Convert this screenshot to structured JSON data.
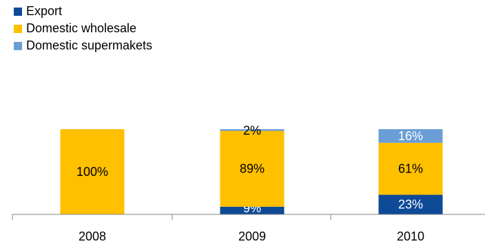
{
  "chart_data": {
    "type": "bar",
    "stacked": true,
    "categories": [
      "2008",
      "2009",
      "2010"
    ],
    "series": [
      {
        "name": "Export",
        "color": "#0E4A96",
        "values": [
          0,
          9,
          23
        ],
        "labels": [
          "",
          "9%",
          "23%"
        ]
      },
      {
        "name": "Domestic wholesale",
        "color": "#FFC000",
        "values": [
          100,
          89,
          61
        ],
        "labels": [
          "100%",
          "89%",
          "61%"
        ]
      },
      {
        "name": "Domestic supermakets",
        "color": "#6A9ED6",
        "values": [
          0,
          2,
          16
        ],
        "labels": [
          "",
          "2%",
          "16%"
        ]
      }
    ],
    "totals": [
      100,
      100,
      100
    ],
    "ylim": [
      0,
      100
    ],
    "legend_position": "top-left",
    "grid": false,
    "title": "",
    "xlabel": "",
    "ylabel": ""
  }
}
